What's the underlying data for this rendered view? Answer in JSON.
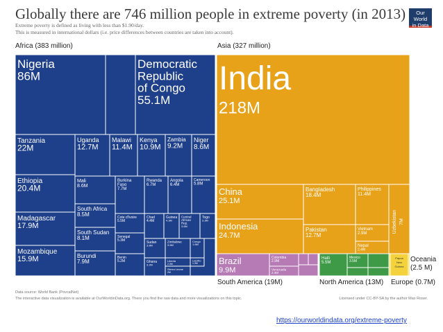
{
  "title": "Globally there are 746 million people in extreme poverty (in 2013)",
  "subtitle_1": "Extreme poverty is defined as living with less than $1.90/day.",
  "subtitle_2": "This is measured in international dollars (i.e. price differences between countries are taken into account).",
  "logo": {
    "line1": "Our World",
    "line2": "in Data"
  },
  "regions": {
    "africa": "Africa (383 million)",
    "asia": "Asia (327 million)",
    "south_america": "South America (19M)",
    "north_america": "North America (13M)",
    "europe": "Europe (0.7M)",
    "oceania": "Oceania",
    "oceania_value": "(2.5 M)"
  },
  "colors": {
    "africa": "#1e3f8a",
    "asia": "#e8a21a",
    "south_america": "#b67ab5",
    "north_america": "#3e9a47",
    "europe": "#f0d43a",
    "border": "#ffffff"
  },
  "chart_data": {
    "type": "treemap",
    "title": "Globally there are 746 million people in extreme poverty (in 2013)",
    "unit": "million people",
    "groups": [
      {
        "name": "Africa",
        "value": 383,
        "items": [
          {
            "name": "Nigeria",
            "label": "86M",
            "value": 86
          },
          {
            "name": "Democratic Republic of Congo",
            "label": "55.1M",
            "value": 55.1
          },
          {
            "name": "Tanzania",
            "label": "22M",
            "value": 22
          },
          {
            "name": "Ethiopia",
            "label": "20.4M",
            "value": 20.4
          },
          {
            "name": "Madagascar",
            "label": "17.9M",
            "value": 17.9
          },
          {
            "name": "Mozambique",
            "label": "15.9M",
            "value": 15.9
          },
          {
            "name": "Uganda",
            "label": "12.7M",
            "value": 12.7
          },
          {
            "name": "Malawi",
            "label": "11.4M",
            "value": 11.4
          },
          {
            "name": "Kenya",
            "label": "10.9M",
            "value": 10.9
          },
          {
            "name": "Zambia",
            "label": "9.2M",
            "value": 9.2
          },
          {
            "name": "Niger",
            "label": "8.6M",
            "value": 8.6
          },
          {
            "name": "Mali",
            "label": "8.6M",
            "value": 8.6
          },
          {
            "name": "South Africa",
            "label": "8.5M",
            "value": 8.5
          },
          {
            "name": "South Sudan",
            "label": "8.1M",
            "value": 8.1
          },
          {
            "name": "Burundi",
            "label": "7.9M",
            "value": 7.9
          },
          {
            "name": "Burkina Faso",
            "label": "7.7M",
            "value": 7.7
          },
          {
            "name": "Rwanda",
            "label": "6.7M",
            "value": 6.7
          },
          {
            "name": "Angola",
            "label": "6.4M",
            "value": 6.4
          },
          {
            "name": "Cameroon",
            "label": "5.8M",
            "value": 5.8
          },
          {
            "name": "Cote d'Ivoire",
            "label": "5.5M",
            "value": 5.5
          },
          {
            "name": "Senegal",
            "label": "5.3M",
            "value": 5.3
          },
          {
            "name": "Benin",
            "label": "5.2M",
            "value": 5.2
          },
          {
            "name": "Chad",
            "label": "4.4M",
            "value": 4.4
          },
          {
            "name": "Guinea",
            "label": "4.3M",
            "value": 4.3
          },
          {
            "name": "Central African Rep.",
            "label": "3.6M",
            "value": 3.6
          },
          {
            "name": "Togo",
            "label": "3.3M",
            "value": 3.3
          },
          {
            "name": "Sudan",
            "label": "3.8M",
            "value": 3.8
          },
          {
            "name": "Zimbabwe",
            "label": "3.6M",
            "value": 3.6
          },
          {
            "name": "Congo",
            "label": "1.6M",
            "value": 1.6
          },
          {
            "name": "Liberia",
            "label": "2.3M",
            "value": 2.3
          },
          {
            "name": "Lesotho",
            "label": "1.3M",
            "value": 1.3
          },
          {
            "name": "Ghana",
            "label": "3.2M",
            "value": 3.2
          },
          {
            "name": "Sierra Leone",
            "label": "2M",
            "value": 2
          }
        ]
      },
      {
        "name": "Asia",
        "value": 327,
        "items": [
          {
            "name": "India",
            "label": "218M",
            "value": 218
          },
          {
            "name": "China",
            "label": "25.1M",
            "value": 25.1
          },
          {
            "name": "Indonesia",
            "label": "24.7M",
            "value": 24.7
          },
          {
            "name": "Bangladesh",
            "label": "18.4M",
            "value": 18.4
          },
          {
            "name": "Pakistan",
            "label": "12.7M",
            "value": 12.7
          },
          {
            "name": "Philippines",
            "label": "11.4M",
            "value": 11.4
          },
          {
            "name": "Uzbekistan",
            "label": "7M",
            "value": 7
          },
          {
            "name": "Vietnam",
            "label": "2.9M",
            "value": 2.9
          },
          {
            "name": "Nepal",
            "label": "2.4M",
            "value": 2.4
          }
        ]
      },
      {
        "name": "South America",
        "value": 19,
        "items": [
          {
            "name": "Brazil",
            "label": "9.9M",
            "value": 9.9
          },
          {
            "name": "Colombia",
            "label": "2.9M",
            "value": 2.9
          },
          {
            "name": "Venezuela",
            "label": "2.4M",
            "value": 2.4
          }
        ]
      },
      {
        "name": "North America",
        "value": 13,
        "items": [
          {
            "name": "Haiti",
            "label": "5.5M",
            "value": 5.5
          },
          {
            "name": "Mexico",
            "label": "3.5M",
            "value": 3.5
          }
        ]
      },
      {
        "name": "Europe",
        "value": 0.7,
        "items": []
      },
      {
        "name": "Oceania",
        "value": 2.5,
        "items": [
          {
            "name": "Papua New Guinea",
            "label": "",
            "value": 2.3
          }
        ]
      }
    ]
  },
  "footer": {
    "source": "Data source: World Bank (PovcalNet)",
    "interactive": "The interactive data visualization is available at OurWorldinData.org. There you find the raw data and more visualizations on this topic.",
    "license": "Licensed under CC-BY-SA by the author Max Roser."
  },
  "url": "https://ourworldindata.org/extreme-poverty"
}
